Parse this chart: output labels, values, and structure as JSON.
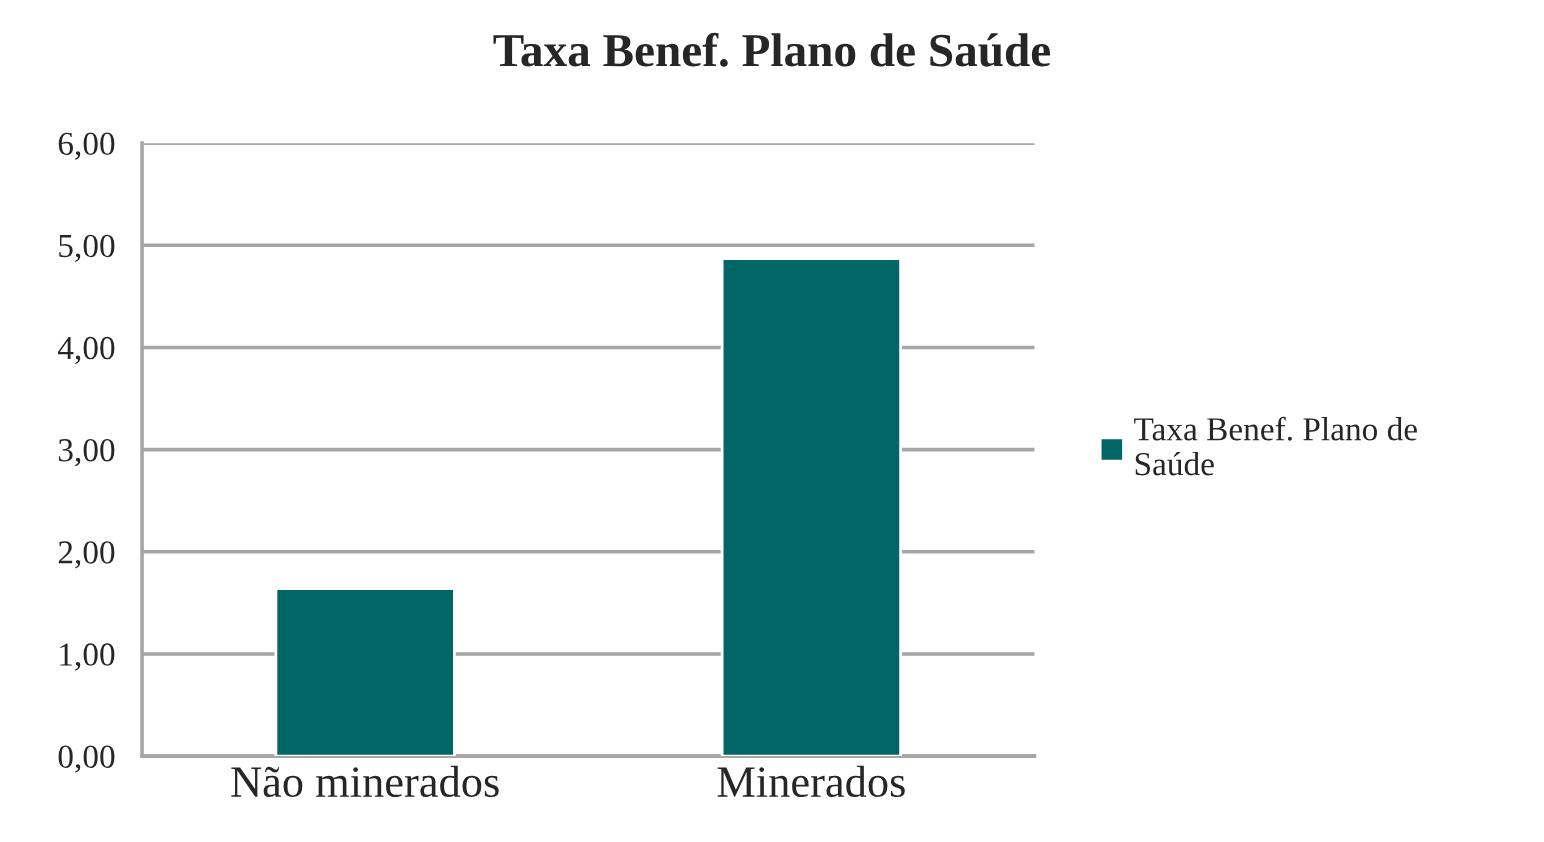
{
  "chart_data": {
    "type": "bar",
    "title": "Taxa Benef. Plano de Saúde",
    "categories": [
      "Não minerados",
      "Minerados"
    ],
    "series": [
      {
        "name": "Taxa Benef. Plano de Saúde",
        "color": "#006666",
        "values": [
          1.64,
          4.87
        ]
      }
    ],
    "ylim": [
      0,
      6
    ],
    "yticks": [
      {
        "value": 0,
        "label": "0,00"
      },
      {
        "value": 1,
        "label": "1,00"
      },
      {
        "value": 2,
        "label": "2,00"
      },
      {
        "value": 3,
        "label": "3,00"
      },
      {
        "value": 4,
        "label": "4,00"
      },
      {
        "value": 5,
        "label": "5,00"
      },
      {
        "value": 6,
        "label": "6,00"
      }
    ],
    "grid": "y",
    "legend": "right"
  }
}
